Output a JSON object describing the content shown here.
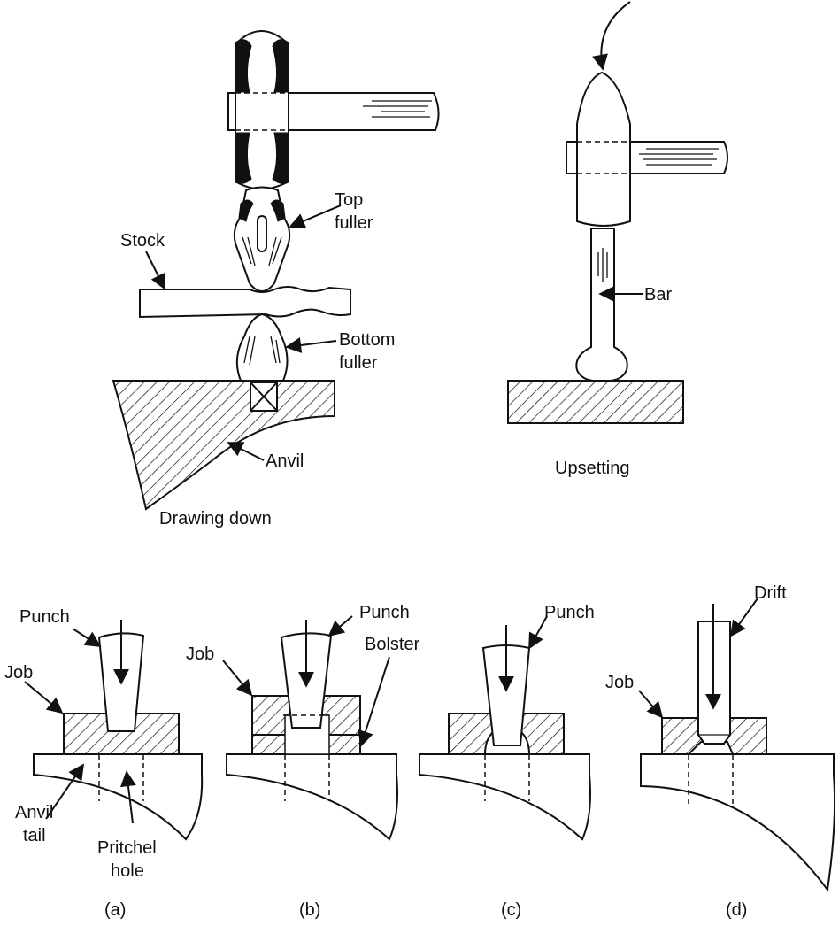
{
  "labels": {
    "top_fuller_1": "Top",
    "top_fuller_2": "fuller",
    "stock": "Stock",
    "bottom_fuller_1": "Bottom",
    "bottom_fuller_2": "fuller",
    "anvil": "Anvil",
    "drawing_down": "Drawing down",
    "bar": "Bar",
    "upsetting": "Upsetting",
    "a_punch": "Punch",
    "a_job": "Job",
    "a_anvil_tail_1": "Anvil",
    "a_anvil_tail_2": "tail",
    "a_pritchel_1": "Pritchel",
    "a_pritchel_2": "hole",
    "a_caption": "(a)",
    "b_punch": "Punch",
    "b_job": "Job",
    "b_bolster": "Bolster",
    "b_caption": "(b)",
    "c_punch": "Punch",
    "c_caption": "(c)",
    "d_drift": "Drift",
    "d_job": "Job",
    "d_caption": "(d)"
  }
}
